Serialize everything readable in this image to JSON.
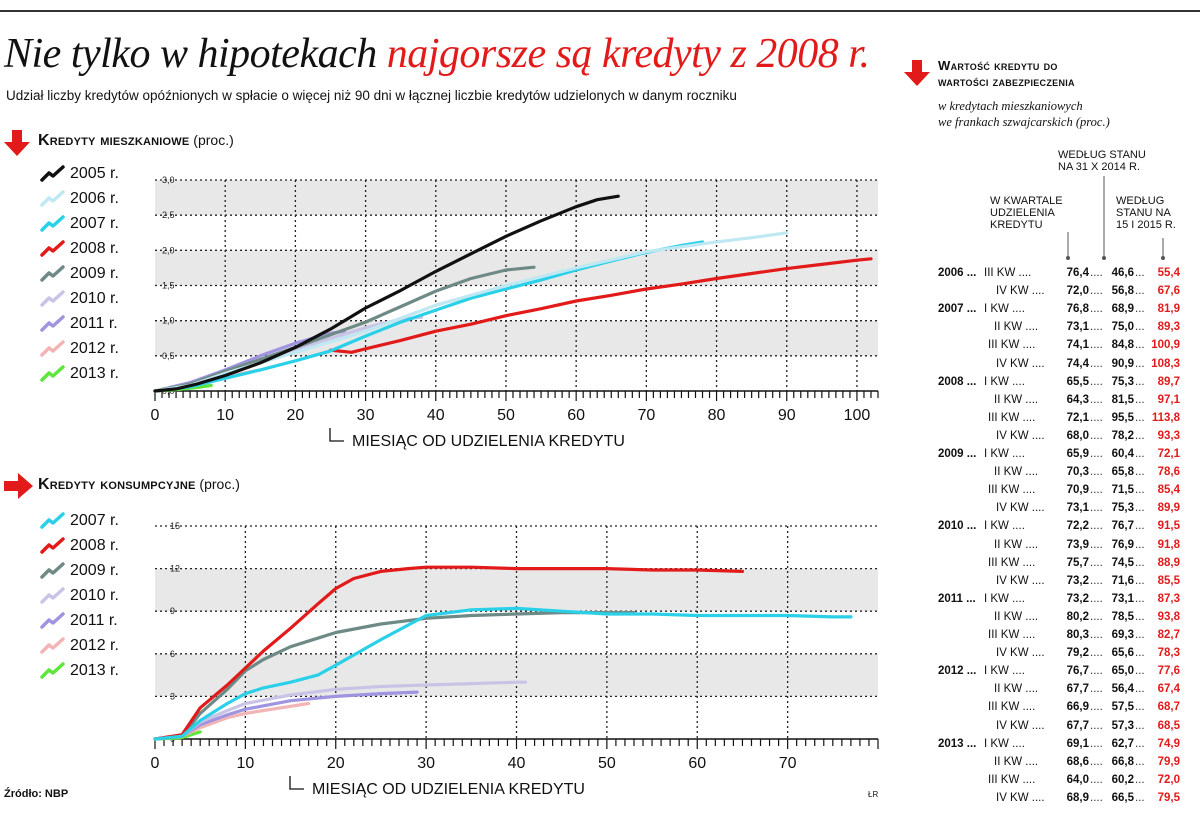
{
  "title": {
    "part1": "Nie tylko w hipotekach",
    "part2": "najgorsze są kredyty z 2008 r."
  },
  "subtitle": "Udział liczby kredytów opóźnionych w spłacie o więcej niż 90 dni w łącznej liczbie kredytów udzielonych w danym roczniku",
  "colors": {
    "accent": "#e21a1a",
    "y2005": "#111111",
    "y2006": "#bfe8f2",
    "y2007": "#29d0e8",
    "y2008": "#e21a1a",
    "y2009": "#6e8a86",
    "y2010": "#c9c4e6",
    "y2011": "#9f94e0",
    "y2012": "#f2b4b4",
    "y2013": "#5ee63c"
  },
  "icons": {
    "section_mortgage": "down-arrow-icon",
    "section_consumer": "right-arrow-icon",
    "right_table": "down-arrow-icon"
  },
  "source": "Źródło: NBP",
  "credit": "ŁR",
  "chart_data": [
    {
      "type": "line",
      "title": "Kredyty mieszkaniowe",
      "unit": "(proc.)",
      "xlabel": "MIESIĄC OD UDZIELENIA KREDYTU",
      "ylabel": "",
      "xlim": [
        0,
        103
      ],
      "ylim": [
        0,
        3.0
      ],
      "xticks": [
        "0",
        "10",
        "20",
        "30",
        "40",
        "50",
        "60",
        "70",
        "80",
        "90",
        "100"
      ],
      "yticks": [
        "0,0",
        "0,5",
        "1,0",
        "1,5",
        "2,0",
        "2,5",
        "3,0"
      ],
      "series": [
        {
          "name": "2005 r.",
          "color": "#111111",
          "x": [
            0,
            3,
            6,
            10,
            15,
            20,
            25,
            30,
            35,
            40,
            45,
            50,
            55,
            60,
            63,
            66
          ],
          "y": [
            0,
            0.03,
            0.1,
            0.22,
            0.4,
            0.62,
            0.88,
            1.18,
            1.43,
            1.7,
            1.95,
            2.2,
            2.42,
            2.62,
            2.72,
            2.77
          ]
        },
        {
          "name": "2006 r.",
          "color": "#bfe8f2",
          "x": [
            0,
            5,
            10,
            20,
            30,
            40,
            50,
            60,
            70,
            80,
            85,
            90
          ],
          "y": [
            0,
            0.08,
            0.25,
            0.55,
            0.85,
            1.22,
            1.5,
            1.75,
            1.98,
            2.12,
            2.18,
            2.25
          ]
        },
        {
          "name": "2007 r.",
          "color": "#29d0e8",
          "x": [
            0,
            5,
            10,
            15,
            20,
            25,
            30,
            35,
            40,
            45,
            50,
            55,
            60,
            65,
            70,
            75,
            78
          ],
          "y": [
            0,
            0.06,
            0.18,
            0.3,
            0.43,
            0.57,
            0.78,
            0.98,
            1.15,
            1.32,
            1.45,
            1.58,
            1.72,
            1.85,
            1.97,
            2.07,
            2.12
          ]
        },
        {
          "name": "2008 r.",
          "color": "#e21a1a",
          "x": [
            25,
            28,
            30,
            35,
            40,
            45,
            50,
            55,
            60,
            65,
            70,
            75,
            80,
            85,
            90,
            95,
            100,
            102
          ],
          "y": [
            0.58,
            0.55,
            0.6,
            0.72,
            0.85,
            0.95,
            1.07,
            1.17,
            1.28,
            1.36,
            1.45,
            1.52,
            1.6,
            1.67,
            1.74,
            1.8,
            1.86,
            1.88
          ]
        },
        {
          "name": "2009 r.",
          "color": "#6e8a86",
          "x": [
            0,
            5,
            10,
            15,
            20,
            25,
            30,
            35,
            40,
            45,
            50,
            54
          ],
          "y": [
            0,
            0.1,
            0.28,
            0.45,
            0.62,
            0.8,
            0.98,
            1.2,
            1.42,
            1.6,
            1.72,
            1.76
          ]
        },
        {
          "name": "2010 r.",
          "color": "#c9c4e6",
          "x": [
            0,
            5,
            10,
            15,
            20,
            25,
            30,
            35,
            38
          ],
          "y": [
            0,
            0.1,
            0.25,
            0.42,
            0.58,
            0.75,
            0.9,
            1.02,
            1.05
          ]
        },
        {
          "name": "2011 r.",
          "color": "#9f94e0",
          "x": [
            0,
            5,
            10,
            15,
            20,
            25,
            27
          ],
          "y": [
            0,
            0.12,
            0.3,
            0.5,
            0.68,
            0.82,
            0.85
          ]
        },
        {
          "name": "2012 r.",
          "color": "#f2b4b4",
          "x": [
            0,
            4,
            8,
            12,
            15
          ],
          "y": [
            0,
            0.06,
            0.15,
            0.24,
            0.3
          ]
        },
        {
          "name": "2013 r.",
          "color": "#5ee63c",
          "x": [
            0,
            3,
            6,
            8
          ],
          "y": [
            0,
            0.02,
            0.05,
            0.08
          ]
        }
      ]
    },
    {
      "type": "line",
      "title": "Kredyty konsumpcyjne",
      "unit": "(proc.)",
      "xlabel": "MIESIĄC OD UDZIELENIA KREDYTU",
      "ylabel": "",
      "xlim": [
        0,
        80
      ],
      "ylim": [
        0,
        15
      ],
      "xticks": [
        "0",
        "10",
        "20",
        "30",
        "40",
        "50",
        "60",
        "70"
      ],
      "yticks": [
        "0",
        "3",
        "6",
        "9",
        "12",
        "15"
      ],
      "series": [
        {
          "name": "2007 r.",
          "color": "#29d0e8",
          "x": [
            0,
            3,
            5,
            8,
            10,
            12,
            15,
            18,
            20,
            25,
            30,
            35,
            40,
            45,
            50,
            55,
            60,
            65,
            70,
            75,
            77
          ],
          "y": [
            0,
            0.2,
            1.3,
            2.5,
            3.2,
            3.6,
            4.0,
            4.5,
            5.2,
            7.0,
            8.7,
            9.1,
            9.2,
            9.0,
            8.8,
            8.8,
            8.7,
            8.7,
            8.7,
            8.6,
            8.6
          ]
        },
        {
          "name": "2008 r.",
          "color": "#e21a1a",
          "x": [
            0,
            3,
            5,
            8,
            10,
            12,
            15,
            18,
            20,
            22,
            25,
            28,
            30,
            35,
            40,
            45,
            50,
            55,
            60,
            65
          ],
          "y": [
            0,
            0.3,
            2.2,
            3.8,
            5.0,
            6.2,
            7.8,
            9.5,
            10.6,
            11.3,
            11.8,
            12.0,
            12.1,
            12.1,
            12.0,
            12.0,
            12.0,
            11.9,
            11.9,
            11.8
          ]
        },
        {
          "name": "2009 r.",
          "color": "#6e8a86",
          "x": [
            0,
            3,
            5,
            8,
            10,
            12,
            15,
            18,
            20,
            25,
            30,
            35,
            40,
            45,
            50,
            53
          ],
          "y": [
            0,
            0.2,
            1.8,
            3.5,
            4.8,
            5.6,
            6.5,
            7.1,
            7.5,
            8.1,
            8.5,
            8.7,
            8.8,
            8.9,
            8.9,
            8.9
          ]
        },
        {
          "name": "2010 r.",
          "color": "#c9c4e6",
          "x": [
            0,
            3,
            5,
            8,
            10,
            15,
            20,
            25,
            30,
            35,
            40,
            41
          ],
          "y": [
            0,
            0.2,
            1.2,
            2.0,
            2.5,
            3.1,
            3.5,
            3.7,
            3.8,
            3.9,
            4.0,
            4.0
          ]
        },
        {
          "name": "2011 r.",
          "color": "#9f94e0",
          "x": [
            0,
            3,
            5,
            8,
            10,
            15,
            20,
            25,
            29
          ],
          "y": [
            0,
            0.2,
            1.0,
            1.7,
            2.1,
            2.7,
            3.0,
            3.2,
            3.3
          ]
        },
        {
          "name": "2012 r.",
          "color": "#f2b4b4",
          "x": [
            0,
            3,
            5,
            8,
            10,
            15,
            17
          ],
          "y": [
            0,
            0.2,
            0.8,
            1.5,
            1.8,
            2.3,
            2.5
          ]
        },
        {
          "name": "2013 r.",
          "color": "#5ee63c",
          "x": [
            0,
            2,
            3,
            4,
            5
          ],
          "y": [
            0,
            0.05,
            0.1,
            0.3,
            0.5
          ]
        }
      ]
    }
  ],
  "right_table": {
    "title_line1": "Wartość kredytu do",
    "title_line2": "wartości zabezpieczenia",
    "sub_line1": "w kredytach mieszkaniowych",
    "sub_line2": "we frankach szwajcarskich (proc.)",
    "col2_l1": "Według stanu",
    "col2_l2": "na 31 X 2014 r.",
    "col1_l1": "W kwartale",
    "col1_l2": "udzielenia",
    "col1_l3": "kredytu",
    "col3_l1": "Według",
    "col3_l2": "stanu na",
    "col3_l3": "15 I 2015 r.",
    "rows": [
      {
        "year": "2006",
        "q": "III KW",
        "v1": "76,4",
        "v2": "46,6",
        "v3": "55,4"
      },
      {
        "year": "",
        "q": "IV KW",
        "v1": "72,0",
        "v2": "56,8",
        "v3": "67,6"
      },
      {
        "year": "2007",
        "q": "I KW",
        "v1": "76,8",
        "v2": "68,9",
        "v3": "81,9"
      },
      {
        "year": "",
        "q": "II KW",
        "v1": "73,1",
        "v2": "75,0",
        "v3": "89,3"
      },
      {
        "year": "",
        "q": "III KW",
        "v1": "74,1",
        "v2": "84,8",
        "v3": "100,9"
      },
      {
        "year": "",
        "q": "IV KW",
        "v1": "74,4",
        "v2": "90,9",
        "v3": "108,3"
      },
      {
        "year": "2008",
        "q": "I KW",
        "v1": "65,5",
        "v2": "75,3",
        "v3": "89,7"
      },
      {
        "year": "",
        "q": "II KW",
        "v1": "64,3",
        "v2": "81,5",
        "v3": "97,1"
      },
      {
        "year": "",
        "q": "III KW",
        "v1": "72,1",
        "v2": "95,5",
        "v3": "113,8"
      },
      {
        "year": "",
        "q": "IV KW",
        "v1": "68,0",
        "v2": "78,2",
        "v3": "93,3"
      },
      {
        "year": "2009",
        "q": "I KW",
        "v1": "65,9",
        "v2": "60,4",
        "v3": "72,1"
      },
      {
        "year": "",
        "q": "II KW",
        "v1": "70,3",
        "v2": "65,8",
        "v3": "78,6"
      },
      {
        "year": "",
        "q": "III KW",
        "v1": "70,9",
        "v2": "71,5",
        "v3": "85,4"
      },
      {
        "year": "",
        "q": "IV KW",
        "v1": "73,1",
        "v2": "75,3",
        "v3": "89,9"
      },
      {
        "year": "2010",
        "q": "I KW",
        "v1": "72,2",
        "v2": "76,7",
        "v3": "91,5"
      },
      {
        "year": "",
        "q": "II KW",
        "v1": "73,9",
        "v2": "76,9",
        "v3": "91,8"
      },
      {
        "year": "",
        "q": "III KW",
        "v1": "75,7",
        "v2": "74,5",
        "v3": "88,9"
      },
      {
        "year": "",
        "q": "IV KW",
        "v1": "73,2",
        "v2": "71,6",
        "v3": "85,5"
      },
      {
        "year": "2011",
        "q": "I KW",
        "v1": "73,2",
        "v2": "73,1",
        "v3": "87,3"
      },
      {
        "year": "",
        "q": "II KW",
        "v1": "80,2",
        "v2": "78,5",
        "v3": "93,8"
      },
      {
        "year": "",
        "q": "III KW",
        "v1": "80,3",
        "v2": "69,3",
        "v3": "82,7"
      },
      {
        "year": "",
        "q": "IV KW",
        "v1": "79,2",
        "v2": "65,6",
        "v3": "78,3"
      },
      {
        "year": "2012",
        "q": "I KW",
        "v1": "76,7",
        "v2": "65,0",
        "v3": "77,6"
      },
      {
        "year": "",
        "q": "II KW",
        "v1": "67,7",
        "v2": "56,4",
        "v3": "67,4"
      },
      {
        "year": "",
        "q": "III KW",
        "v1": "66,9",
        "v2": "57,5",
        "v3": "68,7"
      },
      {
        "year": "",
        "q": "IV KW",
        "v1": "67,7",
        "v2": "57,3",
        "v3": "68,5"
      },
      {
        "year": "2013",
        "q": "I KW",
        "v1": "69,1",
        "v2": "62,7",
        "v3": "74,9"
      },
      {
        "year": "",
        "q": "II KW",
        "v1": "68,6",
        "v2": "66,8",
        "v3": "79,9"
      },
      {
        "year": "",
        "q": "III KW",
        "v1": "64,0",
        "v2": "60,2",
        "v3": "72,0"
      },
      {
        "year": "",
        "q": "IV KW",
        "v1": "68,9",
        "v2": "66,5",
        "v3": "79,5"
      }
    ]
  }
}
